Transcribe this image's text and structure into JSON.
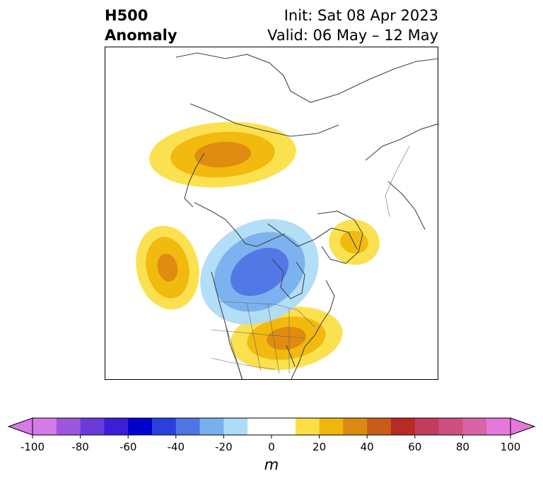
{
  "title": {
    "left_line1": "H500",
    "left_line2": "Anomaly",
    "right_line1": "Init: Sat 08 Apr 2023",
    "right_line2": "Valid: 06 May – 12 May"
  },
  "colorbar": {
    "units": "m",
    "min": -100,
    "max": 100,
    "step": 10,
    "extend": "both",
    "tick_values": [
      -100,
      -80,
      -60,
      -40,
      -20,
      0,
      20,
      40,
      60,
      80,
      100
    ],
    "tick_labels": [
      "-100",
      "-80",
      "-60",
      "-40",
      "-20",
      "0",
      "20",
      "40",
      "60",
      "80",
      "100"
    ],
    "colors": [
      "#d57ae8",
      "#9c56e0",
      "#6a3bd9",
      "#3b1fd6",
      "#0000cc",
      "#2a3fdc",
      "#4f75e3",
      "#79afee",
      "#aedcf7",
      "#ffffff",
      "#ffffff",
      "#fbdf47",
      "#f1b60c",
      "#dd8911",
      "#c85d1a",
      "#b72a25",
      "#c23c5e",
      "#cf4f80",
      "#da63a7",
      "#e678dc"
    ],
    "under_color": "#d57ae8",
    "over_color": "#e678dc"
  },
  "map": {
    "projection": "polar stereographic",
    "region": "North America / North Pacific / Arctic",
    "anomaly_features": [
      {
        "sign": "positive",
        "location": "Arctic Siberia / Bering Strait",
        "peak": 30
      },
      {
        "sign": "positive",
        "location": "NE Pacific",
        "peak": 40
      },
      {
        "sign": "positive",
        "location": "Greenland",
        "peak": 30
      },
      {
        "sign": "positive",
        "location": "Eastern United States",
        "peak": 40
      },
      {
        "sign": "negative",
        "location": "Central / NW Canada",
        "peak": -50
      }
    ]
  }
}
